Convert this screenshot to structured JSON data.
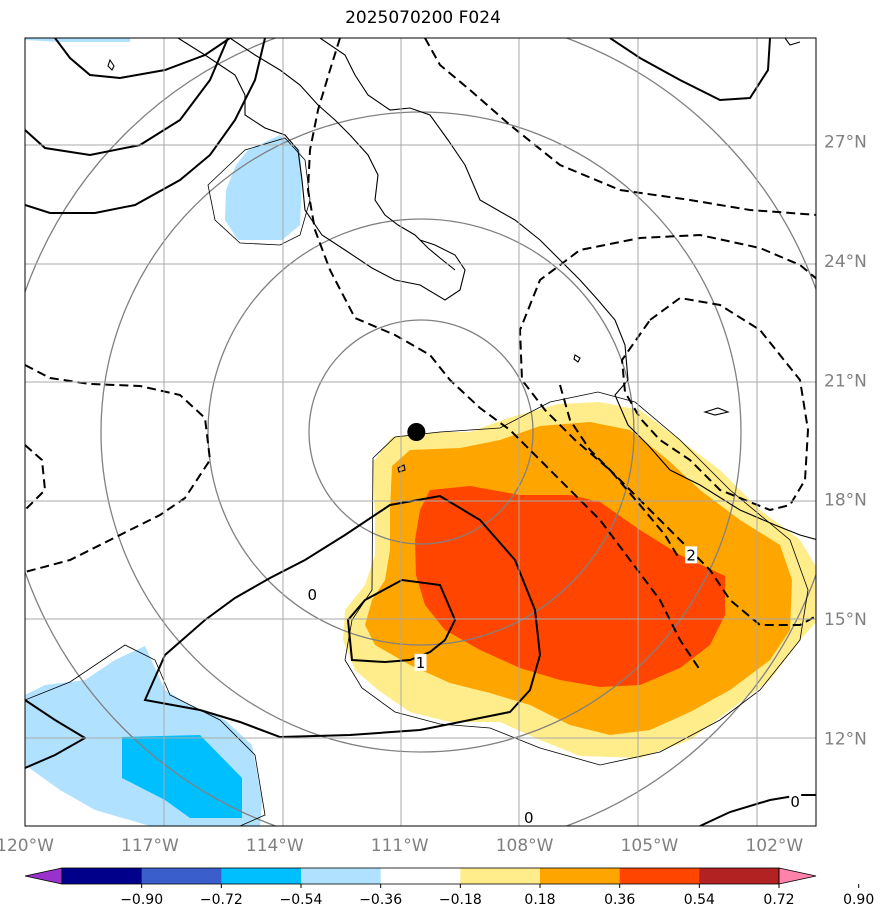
{
  "title": "2025070200 F024",
  "map": {
    "lon_range": [
      -120,
      -101
    ],
    "lat_range": [
      9.8,
      29.6
    ],
    "x_ticks": [
      {
        "value": -120,
        "label": "120°W"
      },
      {
        "value": -117,
        "label": "117°W"
      },
      {
        "value": -114,
        "label": "114°W"
      },
      {
        "value": -111,
        "label": "111°W"
      },
      {
        "value": -108,
        "label": "108°W"
      },
      {
        "value": -105,
        "label": "105°W"
      },
      {
        "value": -102,
        "label": "102°W"
      }
    ],
    "y_ticks": [
      {
        "value": 27,
        "label": "27°N"
      },
      {
        "value": 24,
        "label": "24°N"
      },
      {
        "value": 21,
        "label": "21°N"
      },
      {
        "value": 18,
        "label": "18°N"
      },
      {
        "value": 15,
        "label": "15°N"
      },
      {
        "value": 12,
        "label": "12°N"
      }
    ],
    "grid": true,
    "storm_center": {
      "lon": -110.6,
      "lat": 19.7
    },
    "range_rings": true,
    "contour_labels": [
      {
        "text": "0",
        "lon": -113.1,
        "lat": 15.6
      },
      {
        "text": "1",
        "lon": -110.5,
        "lat": 13.9
      },
      {
        "text": "0",
        "lon": -107.9,
        "lat": 10.0
      },
      {
        "text": "0",
        "lon": -101.5,
        "lat": 10.4
      },
      {
        "text": "2",
        "lon": -104.0,
        "lat": 16.6
      }
    ]
  },
  "colorbar": {
    "ticks": [
      "−0.90",
      "−0.72",
      "−0.54",
      "−0.36",
      "−0.18",
      "0.18",
      "0.36",
      "0.54",
      "0.72",
      "0.90"
    ],
    "colors": [
      "#9932cc",
      "#00008b",
      "#3a5fcd",
      "#00bfff",
      "#b0e2ff",
      "#ffffff",
      "#ffec8b",
      "#ffa500",
      "#ff4500",
      "#b22222",
      "#ff82ab"
    ]
  }
}
